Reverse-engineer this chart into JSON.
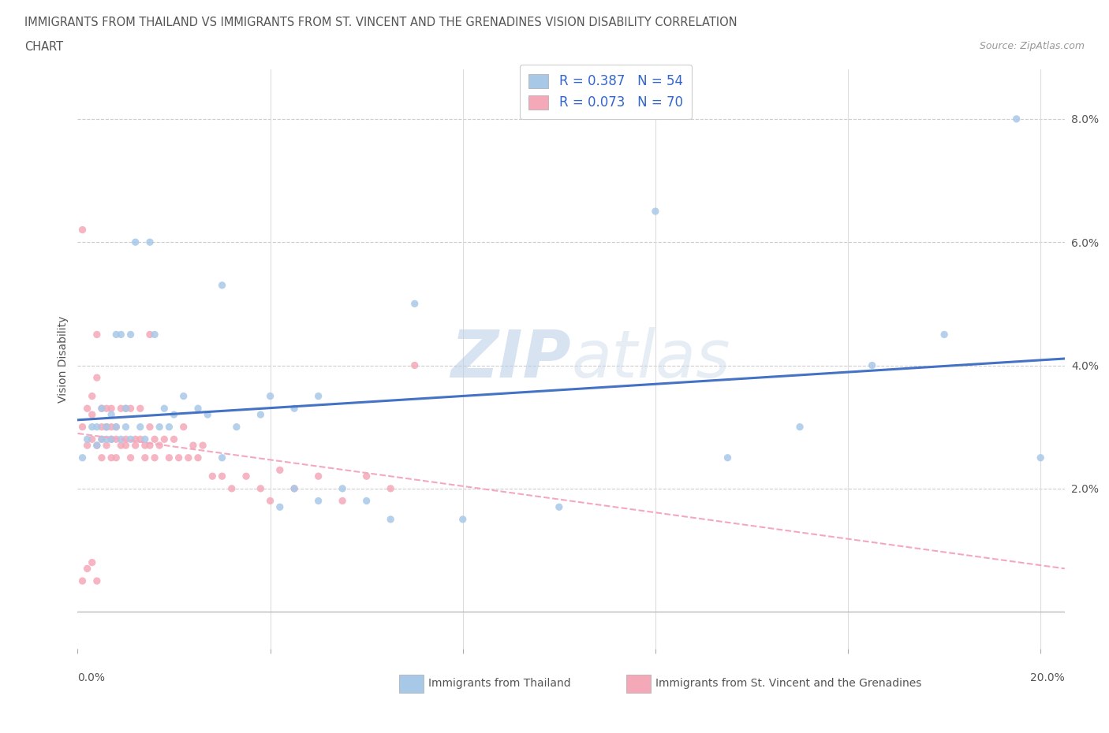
{
  "title_line1": "IMMIGRANTS FROM THAILAND VS IMMIGRANTS FROM ST. VINCENT AND THE GRENADINES VISION DISABILITY CORRELATION",
  "title_line2": "CHART",
  "source": "Source: ZipAtlas.com",
  "ylabel": "Vision Disability",
  "xlim": [
    0.0,
    0.205
  ],
  "ylim": [
    -0.006,
    0.088
  ],
  "color_thailand": "#a8c8e8",
  "color_stv": "#f4a8b8",
  "color_trend_thailand": "#4472c4",
  "color_trend_stv": "#f4a8c0",
  "watermark_color": "#d0dff0",
  "thailand_x": [
    0.001,
    0.002,
    0.003,
    0.004,
    0.004,
    0.005,
    0.005,
    0.006,
    0.006,
    0.007,
    0.007,
    0.008,
    0.008,
    0.009,
    0.009,
    0.01,
    0.01,
    0.011,
    0.011,
    0.012,
    0.013,
    0.014,
    0.015,
    0.016,
    0.017,
    0.018,
    0.019,
    0.02,
    0.022,
    0.025,
    0.027,
    0.03,
    0.033,
    0.038,
    0.04,
    0.042,
    0.045,
    0.05,
    0.055,
    0.06,
    0.07,
    0.08,
    0.1,
    0.12,
    0.135,
    0.15,
    0.165,
    0.18,
    0.195,
    0.2,
    0.03,
    0.045,
    0.05,
    0.065
  ],
  "thailand_y": [
    0.025,
    0.028,
    0.03,
    0.027,
    0.03,
    0.033,
    0.028,
    0.03,
    0.028,
    0.032,
    0.028,
    0.03,
    0.045,
    0.028,
    0.045,
    0.03,
    0.033,
    0.028,
    0.045,
    0.06,
    0.03,
    0.028,
    0.06,
    0.045,
    0.03,
    0.033,
    0.03,
    0.032,
    0.035,
    0.033,
    0.032,
    0.053,
    0.03,
    0.032,
    0.035,
    0.017,
    0.033,
    0.035,
    0.02,
    0.018,
    0.05,
    0.015,
    0.017,
    0.065,
    0.025,
    0.03,
    0.04,
    0.045,
    0.08,
    0.025,
    0.025,
    0.02,
    0.018,
    0.015
  ],
  "stv_x": [
    0.001,
    0.001,
    0.002,
    0.002,
    0.003,
    0.003,
    0.003,
    0.004,
    0.004,
    0.004,
    0.005,
    0.005,
    0.005,
    0.005,
    0.006,
    0.006,
    0.006,
    0.006,
    0.007,
    0.007,
    0.007,
    0.007,
    0.008,
    0.008,
    0.008,
    0.009,
    0.009,
    0.01,
    0.01,
    0.01,
    0.011,
    0.011,
    0.012,
    0.012,
    0.013,
    0.013,
    0.014,
    0.014,
    0.015,
    0.015,
    0.015,
    0.016,
    0.016,
    0.017,
    0.018,
    0.019,
    0.02,
    0.021,
    0.022,
    0.023,
    0.024,
    0.025,
    0.026,
    0.028,
    0.03,
    0.032,
    0.035,
    0.038,
    0.04,
    0.042,
    0.045,
    0.05,
    0.055,
    0.06,
    0.065,
    0.07,
    0.001,
    0.002,
    0.003,
    0.004
  ],
  "stv_y": [
    0.062,
    0.03,
    0.033,
    0.027,
    0.035,
    0.028,
    0.032,
    0.038,
    0.045,
    0.027,
    0.03,
    0.033,
    0.028,
    0.025,
    0.03,
    0.027,
    0.033,
    0.03,
    0.028,
    0.025,
    0.03,
    0.033,
    0.028,
    0.025,
    0.03,
    0.027,
    0.033,
    0.028,
    0.033,
    0.027,
    0.025,
    0.033,
    0.028,
    0.027,
    0.028,
    0.033,
    0.025,
    0.027,
    0.03,
    0.027,
    0.045,
    0.025,
    0.028,
    0.027,
    0.028,
    0.025,
    0.028,
    0.025,
    0.03,
    0.025,
    0.027,
    0.025,
    0.027,
    0.022,
    0.022,
    0.02,
    0.022,
    0.02,
    0.018,
    0.023,
    0.02,
    0.022,
    0.018,
    0.022,
    0.02,
    0.04,
    0.005,
    0.007,
    0.008,
    0.005
  ]
}
